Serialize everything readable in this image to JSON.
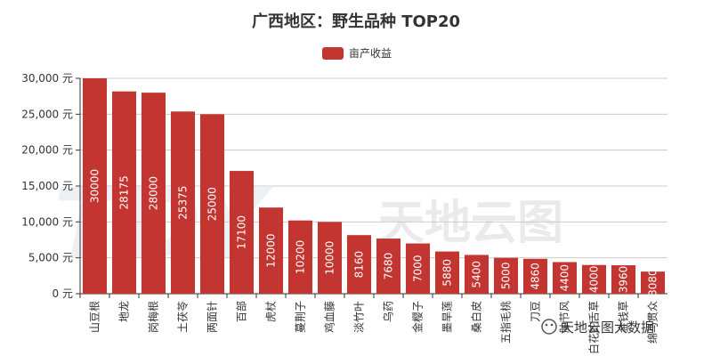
{
  "chart_data": {
    "type": "bar",
    "title": "广西地区：野生品种 TOP20",
    "legend": [
      "亩产收益"
    ],
    "series": [
      {
        "name": "亩产收益",
        "color": "#c23531",
        "values": [
          30000,
          28175,
          28000,
          25375,
          25000,
          17100,
          12000,
          10200,
          10000,
          8160,
          7680,
          7000,
          5880,
          5400,
          5000,
          4860,
          4400,
          4000,
          3960,
          3080
        ]
      }
    ],
    "categories": [
      "山豆根",
      "地龙",
      "岗梅根",
      "土茯苓",
      "两面针",
      "百部",
      "虎杖",
      "蔓荆子",
      "鸡血藤",
      "淡竹叶",
      "乌药",
      "金樱子",
      "墨旱莲",
      "桑白皮",
      "五指毛桃",
      "刀豆",
      "肿节风",
      "白花蛇舌草",
      "金钱草",
      "绵马贯众"
    ],
    "yticks": [
      "0 元",
      "5,000 元",
      "10,000 元",
      "15,000 元",
      "20,000 元",
      "25,000 元",
      "30,000 元"
    ],
    "ylim": [
      0,
      30000
    ],
    "grid": true,
    "legend_position": "top-center"
  },
  "watermark": {
    "text": "天地云图",
    "logo": "TDY"
  },
  "footer": {
    "text": "天地云图大数据"
  }
}
